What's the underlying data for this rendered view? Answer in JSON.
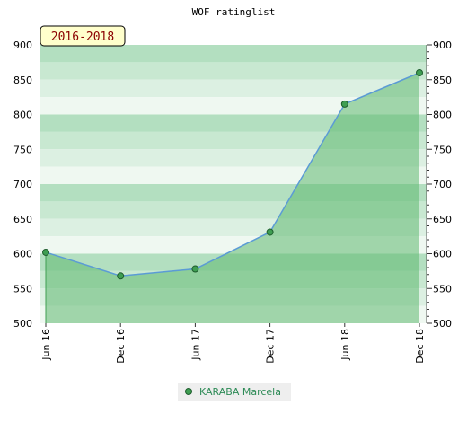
{
  "chart_data": {
    "type": "area",
    "title": "WOF ratinglist",
    "badge": "2016-2018",
    "categories": [
      "Jun 16",
      "Dec 16",
      "Jun 17",
      "Dec 17",
      "Jun 18",
      "Dec 18"
    ],
    "ylim": [
      500,
      900
    ],
    "yticks": [
      500,
      550,
      600,
      650,
      700,
      750,
      800,
      850,
      900
    ],
    "series": [
      {
        "name": "KARABA Marcela",
        "values": [
          602,
          568,
          578,
          631,
          815,
          860
        ]
      }
    ],
    "legend_position": "bottom",
    "grid": true
  },
  "colors": {
    "area_fill": "#5fb870",
    "line": "#5b9bd5",
    "marker": "#3f9e52",
    "badge_bg": "#ffffcc",
    "legend_bg": "#eeeeee"
  }
}
